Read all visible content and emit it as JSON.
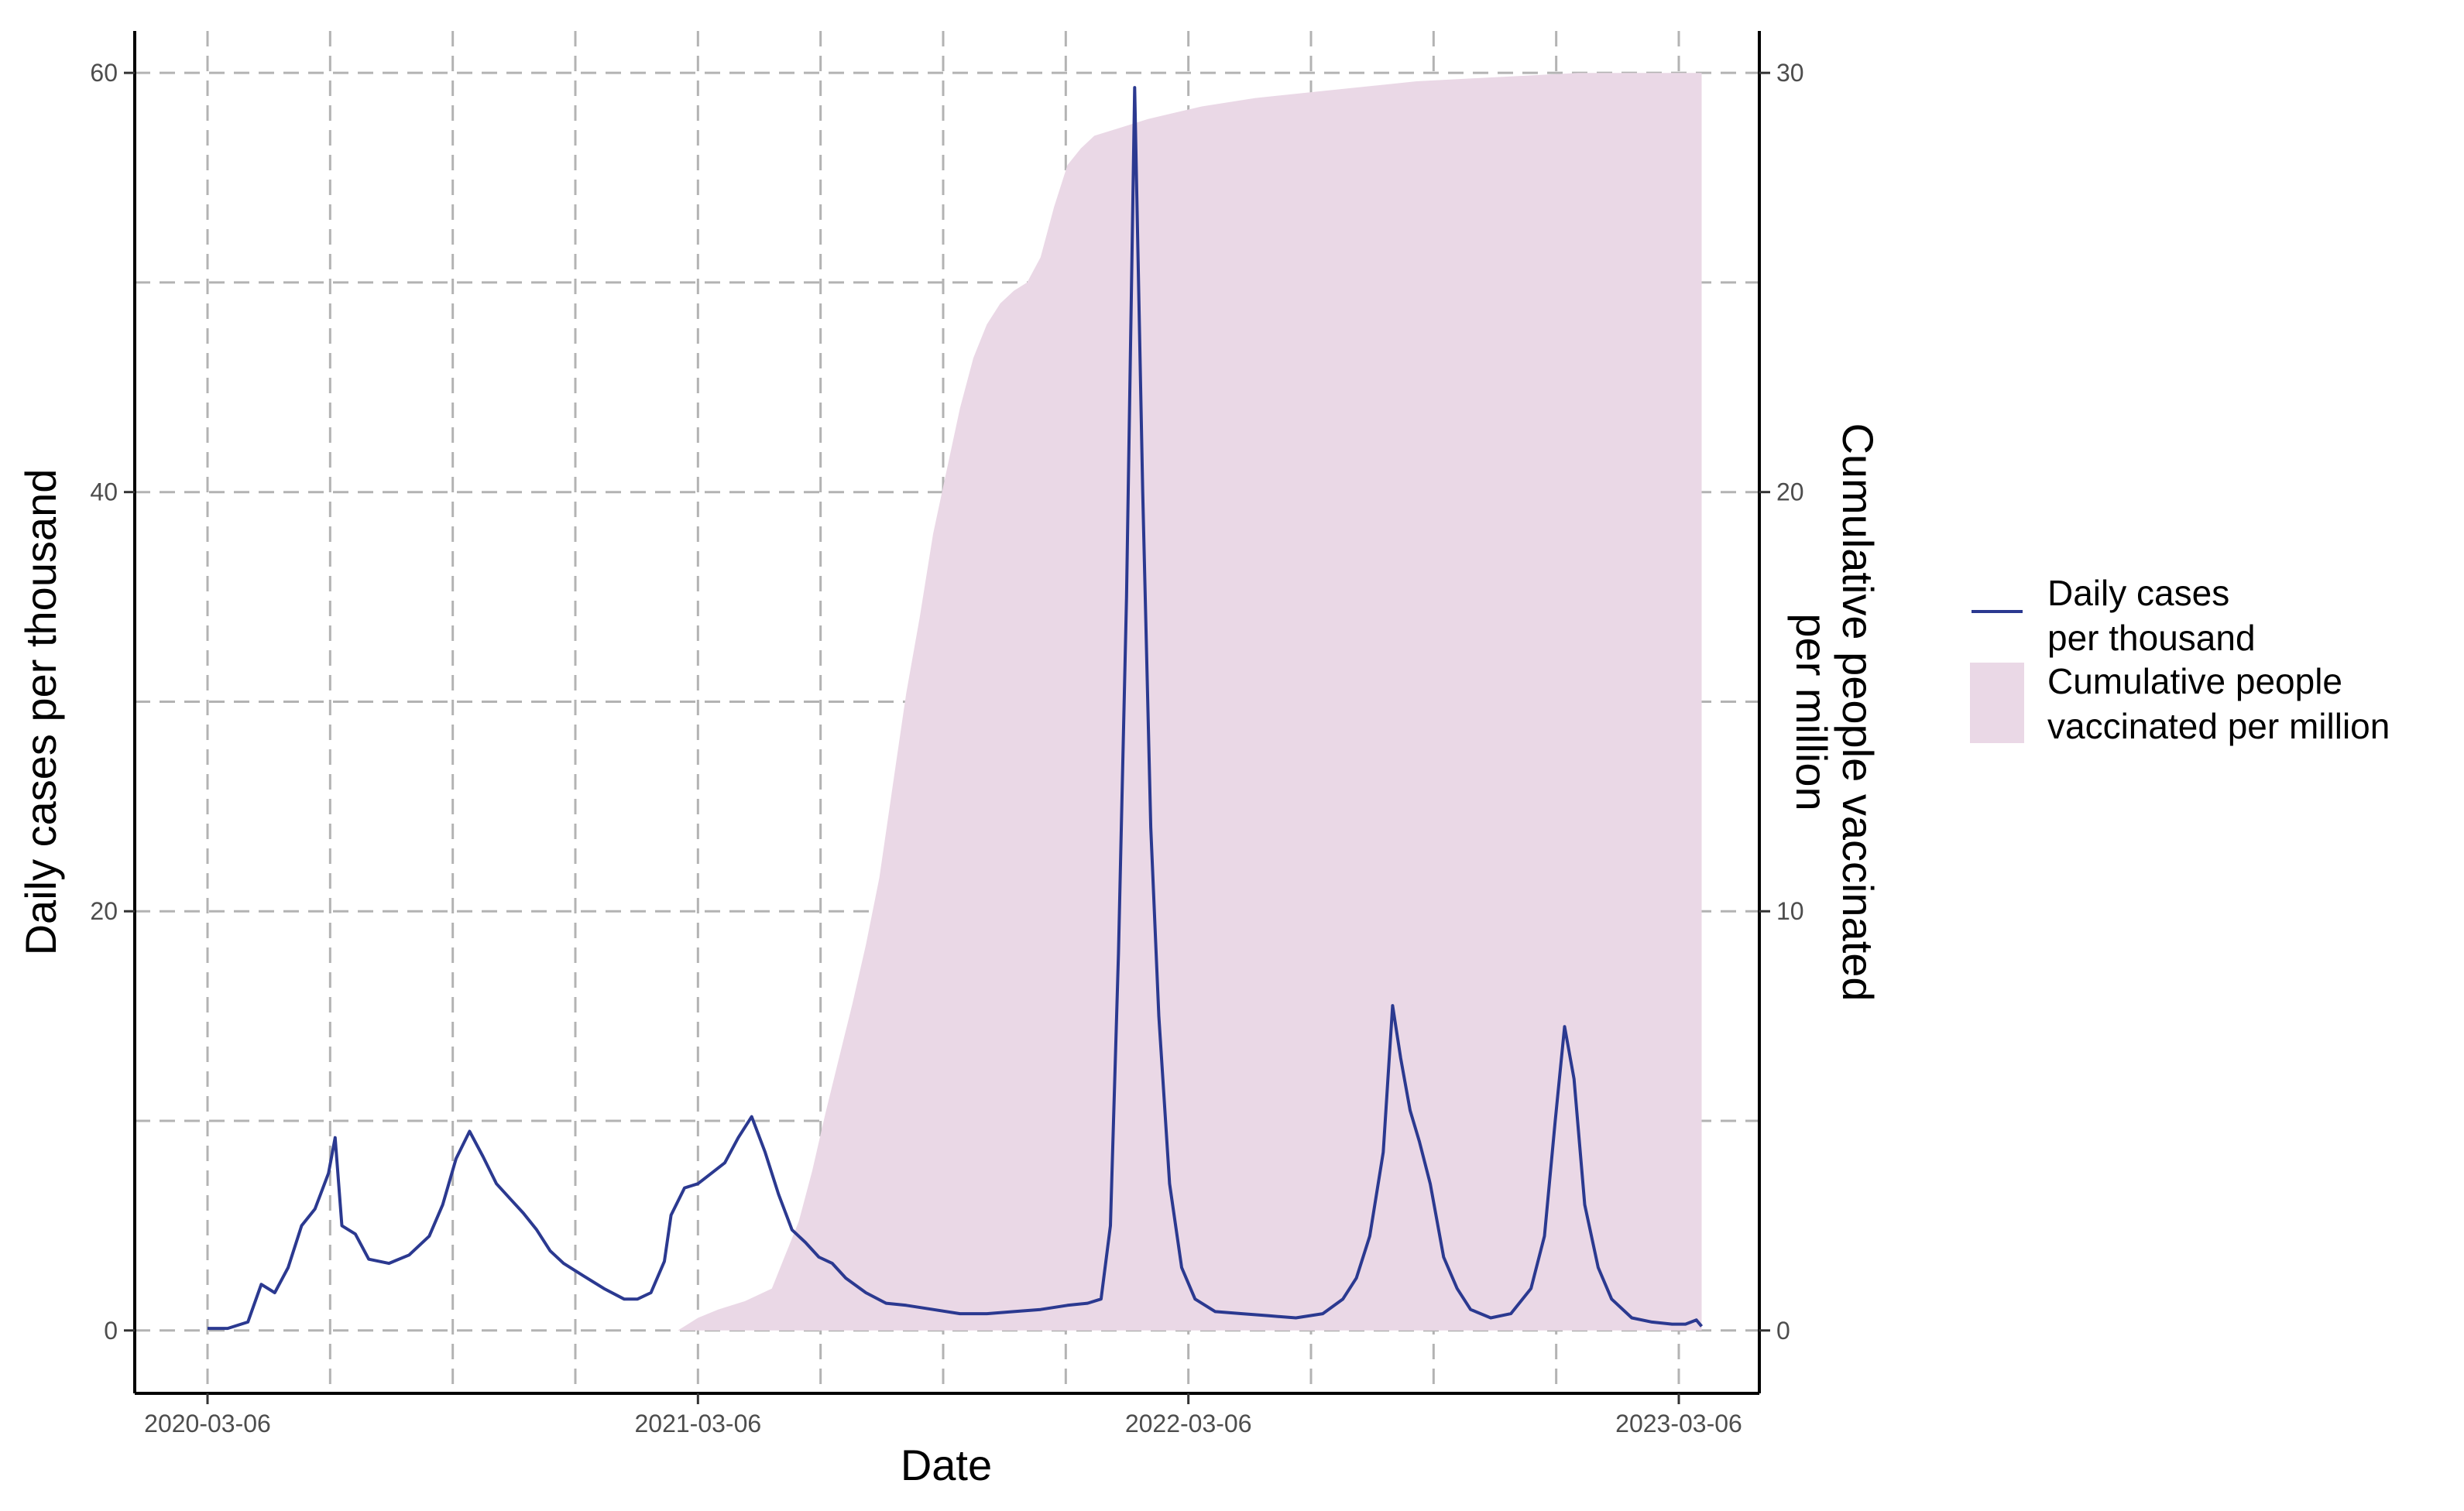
{
  "chart_data": {
    "type": "line",
    "title": "",
    "xlabel": "Date",
    "ylabel": "Daily cases per thousand",
    "y2label": [
      "Cumulative people vaccinated",
      "per million"
    ],
    "x_ticks": [
      "2020-03-06",
      "2021-03-06",
      "2022-03-06",
      "2023-03-06"
    ],
    "ylim": [
      -3,
      62
    ],
    "y_ticks": [
      "0",
      "20",
      "40",
      "60"
    ],
    "y2lim": [
      -1.5,
      31
    ],
    "y2_ticks": [
      "0",
      "10",
      "20",
      "30"
    ],
    "grid": true,
    "legend": {
      "position": "right",
      "entries": [
        {
          "name": [
            "Daily cases",
            "per thousand"
          ],
          "kind": "line",
          "color": "#2b3990"
        },
        {
          "name": [
            "Cumulative people",
            "vaccinated per million"
          ],
          "kind": "area",
          "color": "#ead8e6"
        }
      ]
    },
    "series": [
      {
        "name": "Daily cases per thousand",
        "axis": "left",
        "color": "#2b3990",
        "x_unit": "days since 2020-03-06",
        "points": [
          [
            0,
            0.1
          ],
          [
            15,
            0.1
          ],
          [
            30,
            0.4
          ],
          [
            40,
            2.2
          ],
          [
            50,
            1.8
          ],
          [
            60,
            3.0
          ],
          [
            70,
            5.0
          ],
          [
            80,
            5.8
          ],
          [
            90,
            7.5
          ],
          [
            95,
            9.2
          ],
          [
            100,
            5.0
          ],
          [
            110,
            4.6
          ],
          [
            120,
            3.4
          ],
          [
            135,
            3.2
          ],
          [
            150,
            3.6
          ],
          [
            165,
            4.5
          ],
          [
            175,
            6.0
          ],
          [
            185,
            8.2
          ],
          [
            195,
            9.5
          ],
          [
            205,
            8.3
          ],
          [
            215,
            7.0
          ],
          [
            225,
            6.3
          ],
          [
            235,
            5.6
          ],
          [
            245,
            4.8
          ],
          [
            255,
            3.8
          ],
          [
            265,
            3.2
          ],
          [
            280,
            2.6
          ],
          [
            295,
            2.0
          ],
          [
            310,
            1.5
          ],
          [
            320,
            1.5
          ],
          [
            330,
            1.8
          ],
          [
            340,
            3.3
          ],
          [
            345,
            5.5
          ],
          [
            355,
            6.8
          ],
          [
            365,
            7.0
          ],
          [
            375,
            7.5
          ],
          [
            385,
            8.0
          ],
          [
            395,
            9.2
          ],
          [
            405,
            10.2
          ],
          [
            415,
            8.5
          ],
          [
            425,
            6.5
          ],
          [
            435,
            4.8
          ],
          [
            445,
            4.2
          ],
          [
            455,
            3.5
          ],
          [
            465,
            3.2
          ],
          [
            475,
            2.5
          ],
          [
            490,
            1.8
          ],
          [
            505,
            1.3
          ],
          [
            520,
            1.2
          ],
          [
            540,
            1.0
          ],
          [
            560,
            0.8
          ],
          [
            580,
            0.8
          ],
          [
            600,
            0.9
          ],
          [
            620,
            1.0
          ],
          [
            640,
            1.2
          ],
          [
            655,
            1.3
          ],
          [
            665,
            1.5
          ],
          [
            672,
            5.0
          ],
          [
            678,
            18.0
          ],
          [
            684,
            35.0
          ],
          [
            690,
            59.3
          ],
          [
            696,
            40.0
          ],
          [
            702,
            24.0
          ],
          [
            708,
            15.0
          ],
          [
            716,
            7.0
          ],
          [
            725,
            3.0
          ],
          [
            735,
            1.5
          ],
          [
            750,
            0.9
          ],
          [
            770,
            0.8
          ],
          [
            790,
            0.7
          ],
          [
            810,
            0.6
          ],
          [
            830,
            0.8
          ],
          [
            845,
            1.5
          ],
          [
            855,
            2.5
          ],
          [
            865,
            4.5
          ],
          [
            875,
            8.5
          ],
          [
            882,
            15.5
          ],
          [
            888,
            13.0
          ],
          [
            895,
            10.5
          ],
          [
            902,
            9.0
          ],
          [
            910,
            7.0
          ],
          [
            920,
            3.5
          ],
          [
            930,
            2.0
          ],
          [
            940,
            1.0
          ],
          [
            955,
            0.6
          ],
          [
            970,
            0.8
          ],
          [
            985,
            2.0
          ],
          [
            995,
            4.5
          ],
          [
            1003,
            10.0
          ],
          [
            1010,
            14.5
          ],
          [
            1017,
            12.0
          ],
          [
            1025,
            6.0
          ],
          [
            1035,
            3.0
          ],
          [
            1045,
            1.5
          ],
          [
            1060,
            0.6
          ],
          [
            1075,
            0.4
          ],
          [
            1090,
            0.3
          ],
          [
            1100,
            0.3
          ],
          [
            1108,
            0.5
          ],
          [
            1112,
            0.2
          ]
        ]
      },
      {
        "name": "Cumulative people vaccinated per million",
        "axis": "right",
        "color": "#ead8e6",
        "x_unit": "days since 2020-03-06",
        "points": [
          [
            350,
            0.0
          ],
          [
            365,
            0.3
          ],
          [
            380,
            0.5
          ],
          [
            400,
            0.7
          ],
          [
            420,
            1.0
          ],
          [
            430,
            1.8
          ],
          [
            440,
            2.6
          ],
          [
            450,
            3.8
          ],
          [
            460,
            5.2
          ],
          [
            470,
            6.5
          ],
          [
            480,
            7.8
          ],
          [
            490,
            9.2
          ],
          [
            500,
            10.8
          ],
          [
            510,
            13.0
          ],
          [
            520,
            15.2
          ],
          [
            530,
            17.0
          ],
          [
            540,
            19.0
          ],
          [
            550,
            20.5
          ],
          [
            560,
            22.0
          ],
          [
            570,
            23.2
          ],
          [
            580,
            24.0
          ],
          [
            590,
            24.5
          ],
          [
            600,
            24.8
          ],
          [
            610,
            25.0
          ],
          [
            620,
            25.6
          ],
          [
            630,
            26.8
          ],
          [
            640,
            27.8
          ],
          [
            650,
            28.2
          ],
          [
            660,
            28.5
          ],
          [
            680,
            28.7
          ],
          [
            700,
            28.9
          ],
          [
            740,
            29.2
          ],
          [
            780,
            29.4
          ],
          [
            840,
            29.6
          ],
          [
            900,
            29.8
          ],
          [
            960,
            29.9
          ],
          [
            1020,
            30.0
          ],
          [
            1112,
            30.0
          ]
        ]
      }
    ]
  }
}
